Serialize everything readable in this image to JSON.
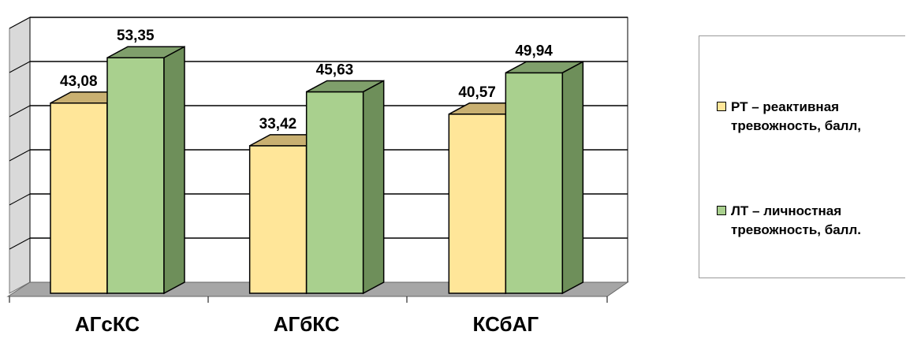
{
  "chart_data": {
    "type": "bar",
    "categories": [
      "АГсКС",
      "АГбКС",
      "КСбАГ"
    ],
    "series": [
      {
        "name": "РТ – реактивная тревожность, балл,",
        "values": [
          43.08,
          33.42,
          40.57
        ],
        "labels": [
          "43,08",
          "33,42",
          "40,57"
        ]
      },
      {
        "name": "ЛТ – личностная тревожность, балл.",
        "values": [
          53.35,
          45.63,
          49.94
        ],
        "labels": [
          "53,35",
          "45,63",
          "49,94"
        ]
      }
    ],
    "ylim": [
      0,
      60
    ],
    "grid": true,
    "legend_position": "right",
    "three_d": true
  },
  "colors": {
    "series_front": [
      "#FFE699",
      "#A9D08E"
    ],
    "series_top": [
      "#C9B071",
      "#7F9F6B"
    ],
    "series_side": [
      "#D8C27A",
      "#6E8F5A"
    ],
    "floor": "#A6A6A6",
    "wall_left": "#D9D9D9"
  }
}
